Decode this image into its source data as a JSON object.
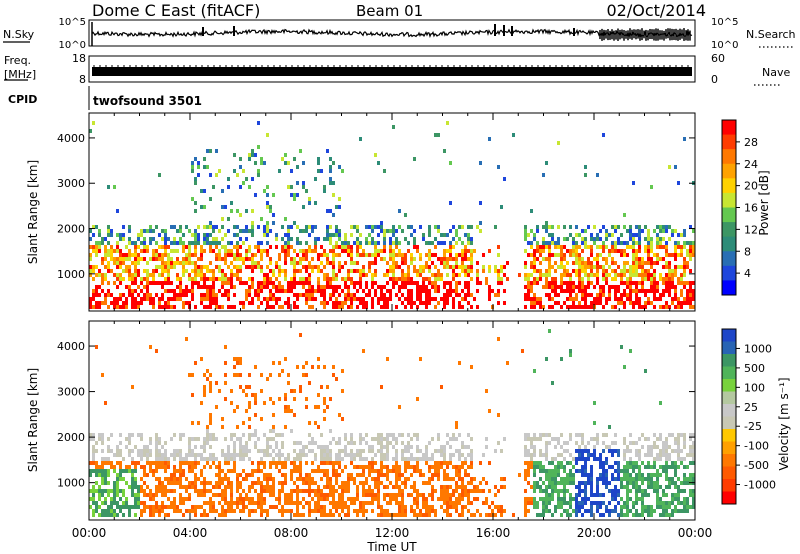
{
  "header": {
    "site": "Dome C East (fitACF)",
    "beam": "Beam 01",
    "date": "02/Oct/2014"
  },
  "top_panels": {
    "nsky_label": "N.Sky",
    "nsky_ticks": [
      "10^5",
      "10^0"
    ],
    "nsearch_label": "N.Search",
    "nsearch_ticks": [
      "10^5",
      "10^0"
    ],
    "freq_label": "Freq.",
    "freq_unit": "[MHz]",
    "freq_ticks": [
      "18",
      "8"
    ],
    "nave_label": "Nave",
    "nave_ticks": [
      "60",
      "0"
    ],
    "cpid_label": "CPID",
    "cpid_value": "twofsound 3501"
  },
  "chart_data": [
    {
      "type": "heatmap",
      "name": "power",
      "ylabel": "Slant Range [km]",
      "xlabel": "Time UT",
      "yticks": [
        1000,
        2000,
        3000,
        4000
      ],
      "ylim": [
        180,
        4550
      ],
      "xticks": [
        "00:00",
        "04:00",
        "08:00",
        "12:00",
        "16:00",
        "20:00",
        "00:00"
      ],
      "xlim_hours": [
        0,
        24
      ],
      "colorbar": {
        "label": "Power [dB]",
        "ticks": [
          "28",
          "24",
          "20",
          "16",
          "12",
          "8",
          "4"
        ],
        "colors": [
          "#ff0000",
          "#ff3c00",
          "#ff7800",
          "#ffa200",
          "#ffd200",
          "#c8e632",
          "#64c850",
          "#3c9664",
          "#2d8c78",
          "#286eb4",
          "#1e46dc",
          "#0000ff"
        ]
      }
    },
    {
      "type": "heatmap",
      "name": "velocity",
      "ylabel": "Slant Range [km]",
      "xlabel": "Time UT",
      "yticks": [
        1000,
        2000,
        3000,
        4000
      ],
      "ylim": [
        180,
        4550
      ],
      "xticks": [
        "00:00",
        "04:00",
        "08:00",
        "12:00",
        "16:00",
        "20:00",
        "00:00"
      ],
      "xlim_hours": [
        0,
        24
      ],
      "colorbar": {
        "label": "Velocity [m s⁻¹]",
        "ticks": [
          "1000",
          "500",
          "100",
          "25",
          "-25",
          "-100",
          "-500",
          "-1000"
        ],
        "colors": [
          "#1e46c8",
          "#2864b4",
          "#3c9664",
          "#50b45a",
          "#78d23c",
          "#b4c8a0",
          "#c8c8c8",
          "#c8c8b4",
          "#ffc800",
          "#ffa000",
          "#ff7800",
          "#ff5a00",
          "#ff3c00",
          "#ff0000"
        ]
      }
    }
  ]
}
